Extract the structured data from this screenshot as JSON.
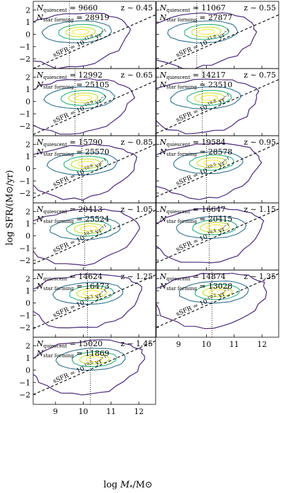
{
  "chart_data": {
    "type": "contour",
    "xlabel": "log M*/M⊙",
    "ylabel": "log SFR/(M⊙/yr)",
    "xlim": [
      8.2,
      12.6
    ],
    "ylim": [
      -2.8,
      2.7
    ],
    "xticks": [
      9,
      10,
      11,
      12
    ],
    "yticks": [
      -2,
      -1,
      0,
      1,
      2
    ],
    "contour_colors": [
      "#482677",
      "#2d6e8e",
      "#29af7f",
      "#bddf26",
      "#fde725"
    ],
    "divider_style": "dashed",
    "panels": [
      {
        "z_label": "z ∼ 0.45",
        "z": 0.45,
        "n_quiescent": 9660,
        "n_star_forming": 28919,
        "ssfr_exp": "-11.0",
        "ssfr_label": "sSFR = 10^-11.0 yr^-1",
        "mass_limit": 9.5,
        "centroid": [
          9.9,
          0.2
        ]
      },
      {
        "z_label": "z ∼ 0.55",
        "z": 0.55,
        "n_quiescent": 11067,
        "n_star_forming": 27877,
        "ssfr_exp": "-11.0",
        "ssfr_label": "sSFR = 10^-11.0 yr^-1",
        "mass_limit": 9.65,
        "centroid": [
          10.0,
          0.2
        ]
      },
      {
        "z_label": "z ∼ 0.65",
        "z": 0.65,
        "n_quiescent": 12992,
        "n_star_forming": 25105,
        "ssfr_exp": "-10.9",
        "ssfr_label": "sSFR = 10^-10.9 yr^-1",
        "mass_limit": 9.7,
        "centroid": [
          10.0,
          0.3
        ]
      },
      {
        "z_label": "z ∼ 0.75",
        "z": 0.75,
        "n_quiescent": 14217,
        "n_star_forming": 23510,
        "ssfr_exp": "-10.8",
        "ssfr_label": "sSFR = 10^-10.8 yr^-1",
        "mass_limit": 9.85,
        "centroid": [
          10.1,
          0.3
        ]
      },
      {
        "z_label": "z ∼ 0.85",
        "z": 0.85,
        "n_quiescent": 15790,
        "n_star_forming": 25570,
        "ssfr_exp": "-10.6",
        "ssfr_label": "sSFR = 10^-10.6 yr^-1",
        "mass_limit": 9.95,
        "centroid": [
          10.1,
          0.4
        ]
      },
      {
        "z_label": "z ∼ 0.95",
        "z": 0.95,
        "n_quiescent": 19584,
        "n_star_forming": 28578,
        "ssfr_exp": "-10.5",
        "ssfr_label": "sSFR = 10^-10.5 yr^-1",
        "mass_limit": 10.0,
        "centroid": [
          10.2,
          0.5
        ]
      },
      {
        "z_label": "z ∼ 1.05",
        "z": 1.05,
        "n_quiescent": 20413,
        "n_star_forming": 25524,
        "ssfr_exp": "-10.5",
        "ssfr_label": "sSFR = 10^-10.5 yr^-1",
        "mass_limit": 10.05,
        "centroid": [
          10.2,
          0.6
        ]
      },
      {
        "z_label": "z ∼ 1.15",
        "z": 1.15,
        "n_quiescent": 16647,
        "n_star_forming": 20415,
        "ssfr_exp": "-10.4",
        "ssfr_label": "sSFR = 10^-10.4 yr^-1",
        "mass_limit": 10.1,
        "centroid": [
          10.3,
          0.7
        ]
      },
      {
        "z_label": "z ∼ 1.25",
        "z": 1.25,
        "n_quiescent": 14624,
        "n_star_forming": 16473,
        "ssfr_exp": "-10.3",
        "ssfr_label": "sSFR = 10^-10.3 yr^-1",
        "mass_limit": 10.15,
        "centroid": [
          10.3,
          0.8
        ]
      },
      {
        "z_label": "z ∼ 1.35",
        "z": 1.35,
        "n_quiescent": 14874,
        "n_star_forming": 13028,
        "ssfr_exp": "-10.2",
        "ssfr_label": "sSFR = 10^-10.2 yr^-1",
        "mass_limit": 10.2,
        "centroid": [
          10.4,
          0.9
        ]
      },
      {
        "z_label": "z ∼ 1.45",
        "z": 1.45,
        "n_quiescent": 15020,
        "n_star_forming": 11869,
        "ssfr_exp": "-10.2",
        "ssfr_label": "sSFR = 10^-10.2 yr^-1",
        "mass_limit": 10.25,
        "centroid": [
          10.4,
          0.9
        ]
      }
    ]
  }
}
